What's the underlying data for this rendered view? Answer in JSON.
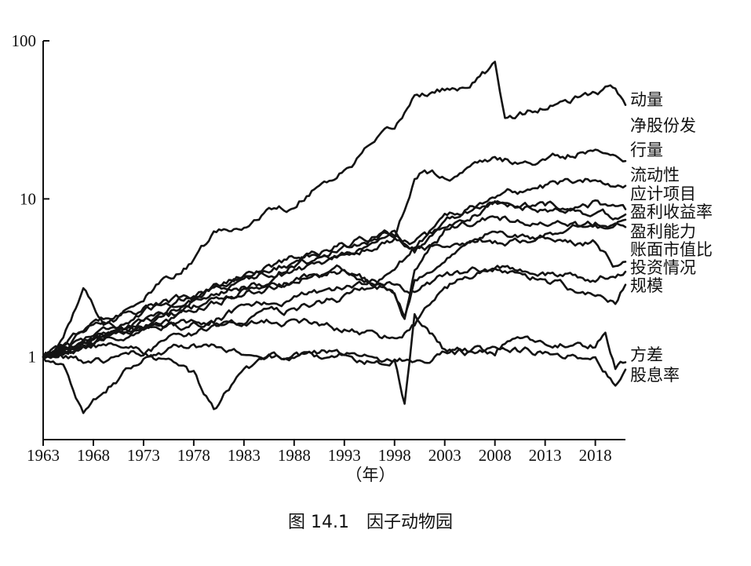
{
  "chart_data": {
    "type": "line",
    "title": "",
    "xlabel": "（年）",
    "ylabel": "",
    "yscale": "log",
    "ylim": [
      0.3,
      100
    ],
    "xlim": [
      1963,
      2021
    ],
    "grid": false,
    "x_ticks": [
      "1963",
      "1968",
      "1973",
      "1978",
      "1983",
      "1988",
      "1993",
      "1998",
      "2003",
      "2008",
      "2013",
      "2018"
    ],
    "y_ticks": [
      "1",
      "10",
      "100"
    ],
    "caption": "图 14.1　因子动物园",
    "series": [
      {
        "name": "动量",
        "x": [
          1963,
          1965,
          1968,
          1970,
          1973,
          1975,
          1978,
          1980,
          1983,
          1985,
          1988,
          1990,
          1993,
          1995,
          1998,
          2000,
          2003,
          2005,
          2008,
          2009,
          2010,
          2013,
          2015,
          2018,
          2020,
          2021
        ],
        "values": [
          1.0,
          1.2,
          1.6,
          1.9,
          2.4,
          3.0,
          4.0,
          6.0,
          6.5,
          8.5,
          9.0,
          12.0,
          15.0,
          20.0,
          27.0,
          45.0,
          50.0,
          48.0,
          70.0,
          33.0,
          34.0,
          38.0,
          40.0,
          46.0,
          50.0,
          42.0
        ]
      },
      {
        "name": "净股份发",
        "x": [
          1963,
          1968,
          1973,
          1978,
          1983,
          1988,
          1993,
          1998,
          2000,
          2003,
          2008,
          2013,
          2018,
          2021
        ],
        "values": [
          1.0,
          1.4,
          1.9,
          2.5,
          3.4,
          4.2,
          5.2,
          6.2,
          4.8,
          7.0,
          10.5,
          12.0,
          13.5,
          12.5
        ]
      },
      {
        "name": "行量",
        "x": [
          1963,
          1968,
          1973,
          1978,
          1983,
          1988,
          1993,
          1998,
          2000,
          2001,
          2003,
          2008,
          2013,
          2018,
          2020,
          2021
        ],
        "values": [
          1.0,
          1.3,
          1.6,
          2.0,
          2.6,
          3.4,
          4.3,
          5.5,
          13.0,
          15.0,
          14.0,
          17.0,
          17.0,
          21.0,
          19.0,
          18.5
        ]
      },
      {
        "name": "流动性",
        "x": [
          1963,
          1968,
          1973,
          1978,
          1983,
          1988,
          1993,
          1998,
          2000,
          2003,
          2008,
          2013,
          2018,
          2021
        ],
        "values": [
          1.0,
          1.3,
          1.7,
          2.2,
          2.9,
          4.0,
          5.0,
          6.0,
          5.0,
          7.5,
          10.0,
          9.0,
          9.5,
          8.0
        ]
      },
      {
        "name": "应计项目",
        "x": [
          1963,
          1968,
          1973,
          1978,
          1983,
          1988,
          1993,
          1998,
          2000,
          2003,
          2008,
          2013,
          2018,
          2021
        ],
        "values": [
          1.0,
          1.5,
          2.0,
          2.4,
          3.2,
          3.8,
          4.6,
          5.5,
          5.0,
          6.5,
          9.5,
          8.5,
          8.0,
          7.5
        ]
      },
      {
        "name": "盈利收益率",
        "x": [
          1963,
          1968,
          1973,
          1978,
          1983,
          1988,
          1993,
          1998,
          1999,
          2000,
          2003,
          2008,
          2013,
          2018,
          2021
        ],
        "values": [
          1.0,
          1.2,
          1.5,
          2.0,
          2.5,
          3.0,
          3.5,
          2.5,
          1.8,
          3.5,
          6.0,
          7.5,
          7.0,
          6.5,
          7.0
        ]
      },
      {
        "name": "盈利能力",
        "x": [
          1963,
          1968,
          1973,
          1978,
          1983,
          1988,
          1993,
          1998,
          2000,
          2003,
          2008,
          2013,
          2018,
          2021
        ],
        "values": [
          1.0,
          0.9,
          1.1,
          1.4,
          1.7,
          2.0,
          2.4,
          3.2,
          4.8,
          4.8,
          5.2,
          6.0,
          6.8,
          6.5
        ]
      },
      {
        "name": "账面市值比",
        "x": [
          1963,
          1968,
          1973,
          1978,
          1983,
          1988,
          1993,
          1998,
          1999,
          2000,
          2003,
          2008,
          2013,
          2018,
          2020,
          2021
        ],
        "values": [
          1.0,
          1.3,
          1.6,
          2.4,
          2.8,
          3.2,
          3.6,
          2.6,
          1.9,
          3.0,
          4.5,
          6.0,
          5.2,
          5.4,
          3.8,
          4.3
        ]
      },
      {
        "name": "投资情况",
        "x": [
          1963,
          1968,
          1973,
          1978,
          1983,
          1988,
          1993,
          1998,
          2000,
          2003,
          2008,
          2013,
          2018,
          2021
        ],
        "values": [
          1.0,
          1.2,
          1.4,
          1.6,
          2.0,
          2.4,
          2.8,
          3.0,
          2.6,
          3.2,
          3.6,
          3.4,
          3.2,
          3.6
        ]
      },
      {
        "name": "规模",
        "x": [
          1963,
          1965,
          1967,
          1969,
          1973,
          1978,
          1983,
          1988,
          1993,
          1998,
          2000,
          2003,
          2008,
          2013,
          2018,
          2020,
          2021
        ],
        "values": [
          1.0,
          1.3,
          2.7,
          1.7,
          1.5,
          1.6,
          1.6,
          1.7,
          1.5,
          1.3,
          1.6,
          3.0,
          3.5,
          3.0,
          2.5,
          2.2,
          2.9
        ]
      },
      {
        "name": "方差",
        "x": [
          1963,
          1968,
          1973,
          1978,
          1980,
          1983,
          1988,
          1993,
          1998,
          1999,
          2000,
          2003,
          2008,
          2009,
          2013,
          2018,
          2019,
          2020,
          2021
        ],
        "values": [
          1.0,
          1.2,
          1.1,
          0.75,
          0.45,
          0.85,
          1.05,
          1.05,
          0.95,
          0.52,
          1.8,
          1.1,
          1.1,
          1.3,
          1.2,
          1.2,
          1.4,
          0.85,
          0.95
        ]
      },
      {
        "name": "股息率",
        "x": [
          1963,
          1965,
          1967,
          1968,
          1973,
          1978,
          1983,
          1988,
          1993,
          1998,
          2003,
          2008,
          2013,
          2018,
          2020,
          2021
        ],
        "values": [
          1.0,
          0.85,
          0.45,
          0.55,
          1.0,
          1.2,
          1.1,
          1.05,
          1.0,
          0.95,
          1.05,
          1.1,
          1.05,
          1.0,
          0.7,
          0.8
        ]
      }
    ]
  }
}
